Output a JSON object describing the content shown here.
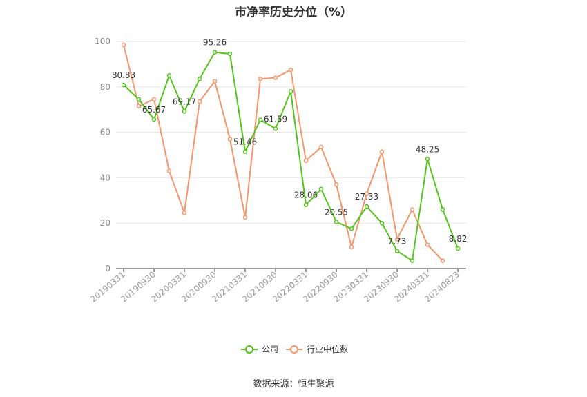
{
  "title": "市净率历史分位（%）",
  "source": "数据来源：恒生聚源",
  "chart_data": {
    "type": "line",
    "title": "市净率历史分位（%）",
    "ylim": [
      0,
      100
    ],
    "yticks": [
      0,
      20,
      40,
      60,
      80,
      100
    ],
    "grid": true,
    "legend_position": "bottom",
    "x_tick_labels": [
      "20190331",
      "20190930",
      "20200331",
      "20200930",
      "20210331",
      "20210930",
      "20220331",
      "20220930",
      "20230331",
      "20230930",
      "20240331",
      "20240823"
    ],
    "x": [
      "20190331",
      "20190630",
      "20190930",
      "20191231",
      "20200331",
      "20200630",
      "20200930",
      "20201231",
      "20210331",
      "20210630",
      "20210930",
      "20211231",
      "20220331",
      "20220630",
      "20220930",
      "20221231",
      "20230331",
      "20230630",
      "20230930",
      "20231231",
      "20240331",
      "20240630",
      "20240823"
    ],
    "series": [
      {
        "name": "公司",
        "color": "#52c41a",
        "values": [
          80.83,
          74.5,
          65.67,
          85.0,
          69.17,
          83.5,
          95.26,
          94.5,
          51.46,
          65.5,
          61.59,
          78.0,
          28.06,
          35.0,
          20.55,
          17.5,
          27.33,
          20.0,
          7.73,
          3.5,
          48.25,
          26.0,
          8.82
        ],
        "labels": {
          "0": "80.83",
          "2": "65.67",
          "4": "69.17",
          "6": "95.26",
          "8": "51.46",
          "10": "61.59",
          "12": "28.06",
          "14": "20.55",
          "16": "27.33",
          "18": "7.73",
          "20": "48.25",
          "22": "8.82"
        }
      },
      {
        "name": "行业中位数",
        "color": "#f5956b",
        "values": [
          98.5,
          71.5,
          74.5,
          43.0,
          24.5,
          73.5,
          82.5,
          57.0,
          22.5,
          83.5,
          84.0,
          87.5,
          47.5,
          53.5,
          37.0,
          9.5,
          33.0,
          51.5,
          13.0,
          26.0,
          10.5,
          3.5,
          null
        ]
      }
    ]
  }
}
